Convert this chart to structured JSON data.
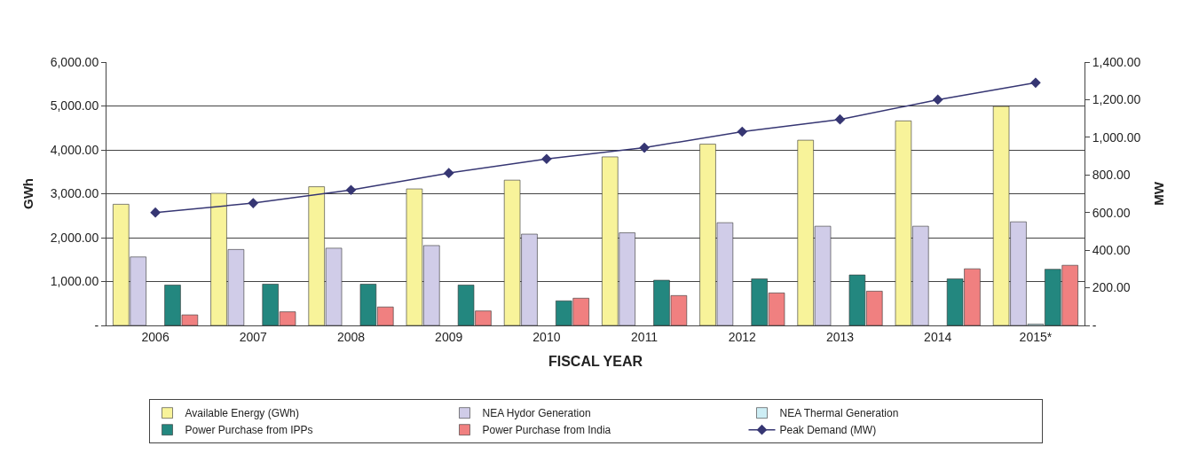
{
  "chart_data": {
    "type": "bar",
    "xlabel": "FISCAL YEAR",
    "ylabel": "GWh",
    "y2label": "MW",
    "categories": [
      "2006",
      "2007",
      "2008",
      "2009",
      "2010",
      "2011",
      "2012",
      "2013",
      "2014",
      "2015*"
    ],
    "series": [
      {
        "name": "Available Energy (GWh)",
        "color": "#f8f39a",
        "values": [
          2760,
          3010,
          3160,
          3110,
          3310,
          3840,
          4130,
          4220,
          4660,
          4990
        ]
      },
      {
        "name": "NEA Hydor Generation",
        "color": "#d0cce8",
        "values": [
          1560,
          1730,
          1760,
          1820,
          2080,
          2110,
          2340,
          2260,
          2260,
          2360
        ]
      },
      {
        "name": "NEA Thermal Generation",
        "color": "#cdeef5",
        "values": [
          null,
          null,
          null,
          null,
          null,
          null,
          null,
          null,
          null,
          30
        ]
      },
      {
        "name": "Power Purchase from IPPs",
        "color": "#23877f",
        "values": [
          920,
          940,
          940,
          920,
          560,
          1030,
          1060,
          1150,
          1060,
          1280
        ]
      },
      {
        "name": "Power Purchase from India",
        "color": "#f08080",
        "values": [
          240,
          310,
          420,
          330,
          620,
          680,
          740,
          780,
          1290,
          1370
        ]
      },
      {
        "name": "Peak Demand (MW)",
        "color": "#363673",
        "type": "line",
        "axis": "y2",
        "marker": "diamond",
        "values": [
          600,
          650,
          720,
          810,
          885,
          945,
          1030,
          1095,
          1200,
          1290
        ]
      }
    ],
    "ylim": [
      0,
      6000
    ],
    "yticks": [
      {
        "value": 0,
        "label": "-"
      },
      {
        "value": 1000,
        "label": "1,000.00"
      },
      {
        "value": 2000,
        "label": "2,000.00"
      },
      {
        "value": 3000,
        "label": "3,000.00"
      },
      {
        "value": 4000,
        "label": "4,000.00"
      },
      {
        "value": 5000,
        "label": "5,000.00"
      },
      {
        "value": 6000,
        "label": "6,000.00"
      }
    ],
    "y2lim": [
      0,
      1400
    ],
    "y2ticks": [
      {
        "value": 0,
        "label": "-"
      },
      {
        "value": 200,
        "label": "200.00"
      },
      {
        "value": 400,
        "label": "400.00"
      },
      {
        "value": 600,
        "label": "600.00"
      },
      {
        "value": 800,
        "label": "800.00"
      },
      {
        "value": 1000,
        "label": "1,000.00"
      },
      {
        "value": 1200,
        "label": "1,200.00"
      },
      {
        "value": 1400,
        "label": "1,400.00"
      }
    ],
    "grid": "y",
    "legend": "bottom"
  }
}
